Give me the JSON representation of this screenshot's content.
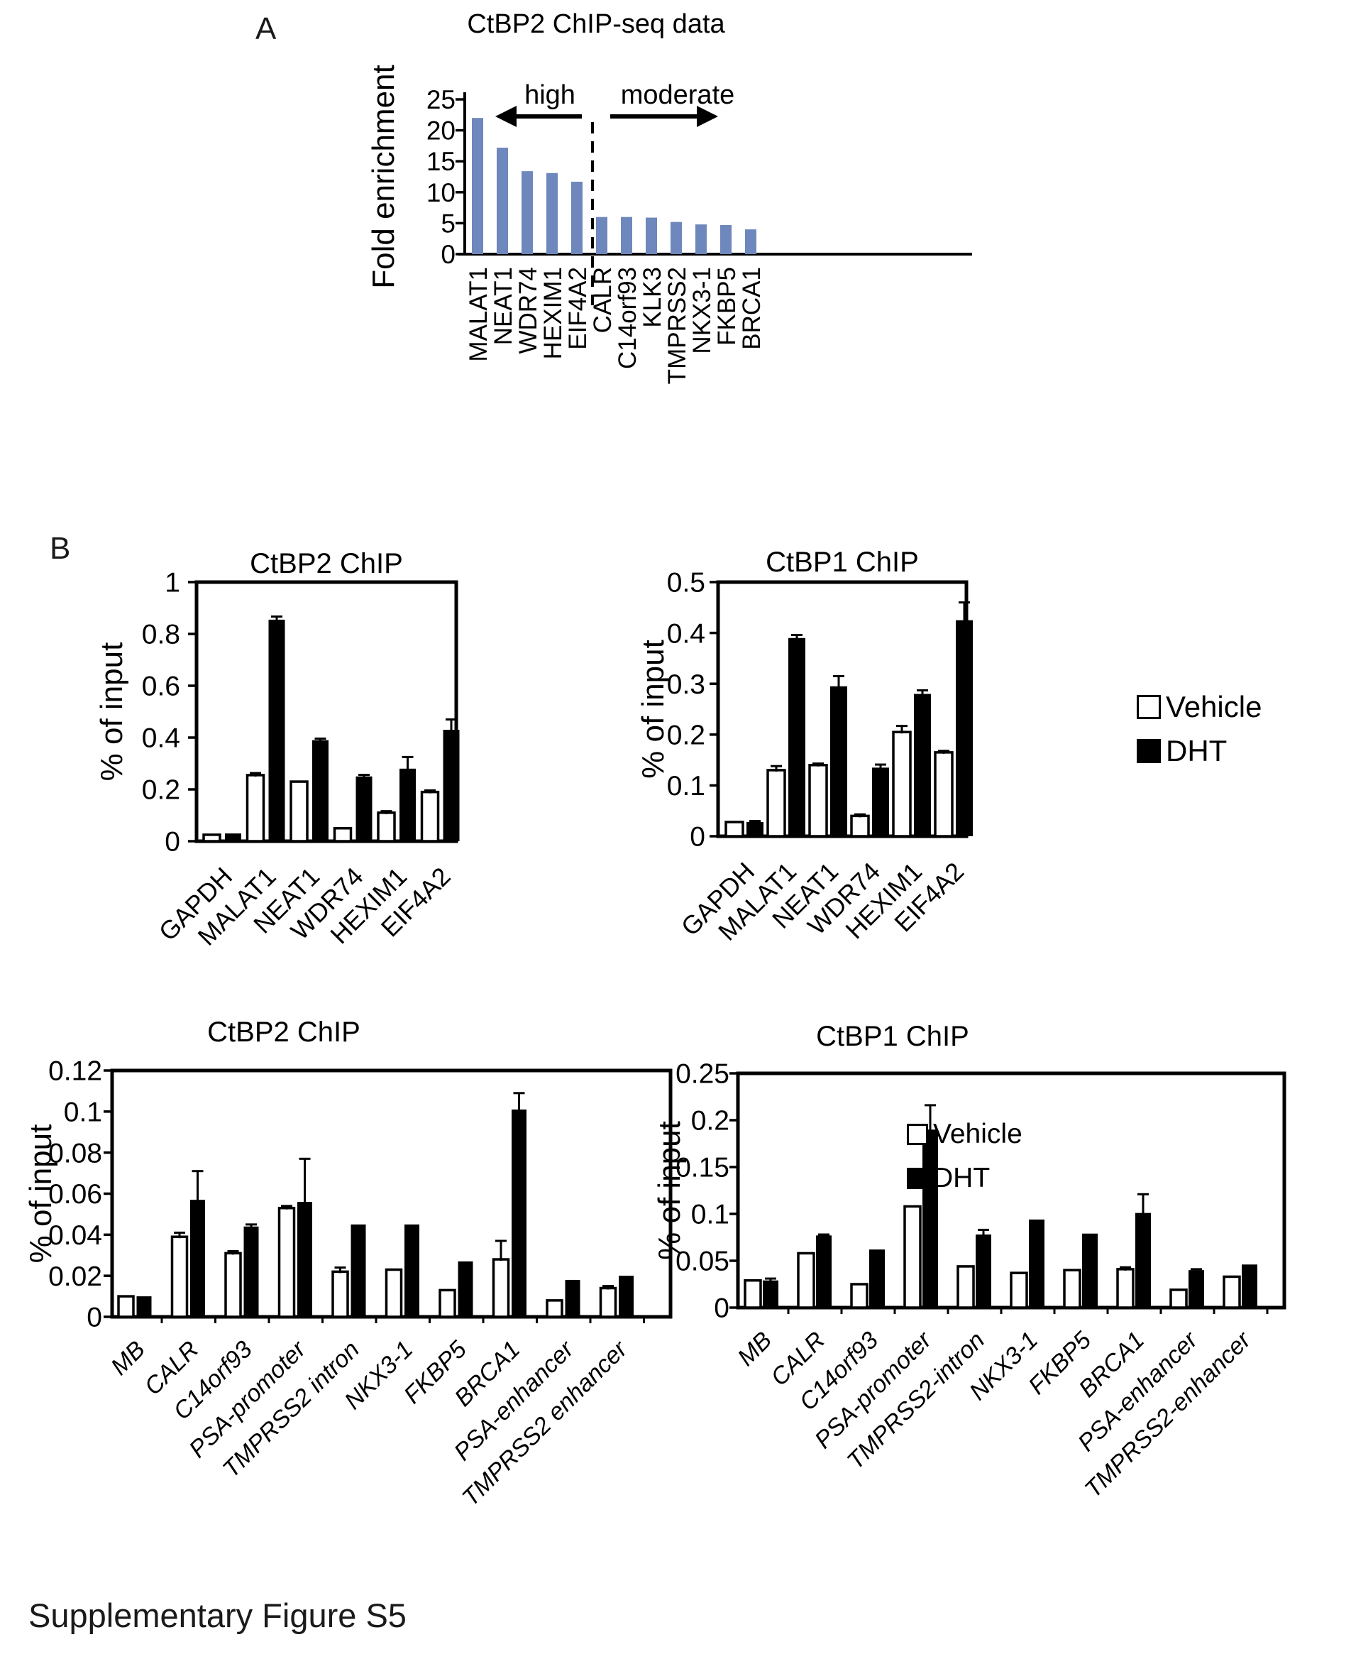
{
  "figure": {
    "panel_a_label": "A",
    "panel_b_label": "B",
    "caption": "Supplementary Figure S5"
  },
  "legend": {
    "vehicle_label": "Vehicle",
    "dht_label": "DHT"
  },
  "colors": {
    "seq_bar_blue": "#6e87bc",
    "vehicle_fill": "#ffffff",
    "dht_fill": "#000000",
    "axis_black": "#000000"
  },
  "chart_data": [
    {
      "id": "ctbp2-chipseq",
      "type": "bar",
      "title": "CtBP2 ChIP-seq data",
      "ylabel": "Fold enrichment",
      "xlabel": "",
      "ylim": [
        0,
        25
      ],
      "yticks": [
        0,
        5,
        10,
        15,
        20,
        25
      ],
      "grid": false,
      "legend_position": "none",
      "categories": [
        "MALAT1",
        "NEAT1",
        "WDR74",
        "HEXIM1",
        "EIF4A2",
        "CALR",
        "C14orf93",
        "KLK3",
        "TMPRSS2",
        "NKX3-1",
        "FKBP5",
        "BRCA1"
      ],
      "values": [
        22,
        17.2,
        13.4,
        13.1,
        11.7,
        6,
        6,
        5.9,
        5.2,
        4.8,
        4.7,
        4
      ],
      "annotations": [
        {
          "text": "high",
          "arrow": "left"
        },
        {
          "text": "moderate",
          "arrow": "right"
        }
      ],
      "separator": {
        "after_category": "EIF4A2",
        "style": "dashed"
      }
    },
    {
      "id": "ctbp2-chip-top",
      "type": "bar",
      "title": "CtBP2 ChIP",
      "ylabel": "% of input",
      "xlabel": "",
      "ylim": [
        0,
        1
      ],
      "yticks": [
        0,
        0.2,
        0.4,
        0.6,
        0.8,
        1
      ],
      "grid": false,
      "legend_position": "none",
      "categories": [
        "GAPDH",
        "MALAT1",
        "NEAT1",
        "WDR74",
        "HEXIM1",
        "EIF4A2"
      ],
      "series": [
        {
          "name": "Vehicle",
          "values": [
            0.025,
            0.255,
            0.23,
            0.05,
            0.11,
            0.19
          ],
          "errors": [
            0,
            0.008,
            0,
            0,
            0.006,
            0.006
          ]
        },
        {
          "name": "DHT",
          "values": [
            0.03,
            0.855,
            0.39,
            0.25,
            0.28,
            0.43
          ],
          "errors": [
            0,
            0.012,
            0.006,
            0.006,
            0.045,
            0.04
          ]
        }
      ]
    },
    {
      "id": "ctbp1-chip-top",
      "type": "bar",
      "title": "CtBP1 ChIP",
      "ylabel": "% of input",
      "xlabel": "",
      "ylim": [
        0,
        0.5
      ],
      "yticks": [
        0,
        0.1,
        0.2,
        0.3,
        0.4,
        0.5
      ],
      "grid": false,
      "legend_position": "right-outside",
      "categories": [
        "GAPDH",
        "MALAT1",
        "NEAT1",
        "WDR74",
        "HEXIM1",
        "EIF4A2"
      ],
      "series": [
        {
          "name": "Vehicle",
          "values": [
            0.028,
            0.13,
            0.14,
            0.04,
            0.205,
            0.165
          ],
          "errors": [
            0,
            0.008,
            0.003,
            0.003,
            0.012,
            0.003
          ]
        },
        {
          "name": "DHT",
          "values": [
            0.028,
            0.39,
            0.295,
            0.135,
            0.28,
            0.425
          ],
          "errors": [
            0.002,
            0.006,
            0.02,
            0.006,
            0.007,
            0.035
          ]
        }
      ]
    },
    {
      "id": "ctbp2-chip-bottom",
      "type": "bar",
      "title": "CtBP2 ChIP",
      "ylabel": "% of input",
      "xlabel": "",
      "ylim": [
        0,
        0.12
      ],
      "yticks": [
        0,
        0.02,
        0.04,
        0.06,
        0.08,
        0.1,
        0.12
      ],
      "grid": false,
      "legend_position": "none",
      "categories": [
        "MB",
        "CALR",
        "C14orf93",
        "PSA-promoter",
        "TMPRSS2 intron",
        "NKX3-1",
        "FKBP5",
        "BRCA1",
        "PSA-enhancer",
        "TMPRSS2 enhancer"
      ],
      "series": [
        {
          "name": "Vehicle",
          "values": [
            0.01,
            0.039,
            0.031,
            0.053,
            0.022,
            0.023,
            0.013,
            0.028,
            0.008,
            0.014
          ],
          "errors": [
            0,
            0.002,
            0.001,
            0.001,
            0.002,
            0,
            0,
            0.009,
            0,
            0.001
          ]
        },
        {
          "name": "DHT",
          "values": [
            0.01,
            0.057,
            0.044,
            0.056,
            0.045,
            0.045,
            0.027,
            0.101,
            0.018,
            0.02
          ],
          "errors": [
            0,
            0.014,
            0.001,
            0.021,
            0,
            0,
            0,
            0.008,
            0,
            0
          ]
        }
      ]
    },
    {
      "id": "ctbp1-chip-bottom",
      "type": "bar",
      "title": "CtBP1 ChIP",
      "ylabel": "% of input",
      "xlabel": "",
      "ylim": [
        0,
        0.25
      ],
      "yticks": [
        0,
        0.05,
        0.1,
        0.15,
        0.2,
        0.25
      ],
      "grid": false,
      "legend_position": "inside-top-right",
      "categories": [
        "MB",
        "CALR",
        "C14orf93",
        "PSA-promoter",
        "TMPRSS2-intron",
        "NKX3-1",
        "FKBP5",
        "BRCA1",
        "PSA-enhancer",
        "TMPRSS2-enhancer"
      ],
      "series": [
        {
          "name": "Vehicle",
          "values": [
            0.029,
            0.058,
            0.025,
            0.108,
            0.044,
            0.037,
            0.04,
            0.041,
            0.019,
            0.033
          ],
          "errors": [
            0,
            0,
            0,
            0,
            0,
            0,
            0,
            0.002,
            0,
            0
          ]
        },
        {
          "name": "DHT",
          "values": [
            0.029,
            0.077,
            0.062,
            0.19,
            0.078,
            0.094,
            0.079,
            0.101,
            0.04,
            0.046
          ],
          "errors": [
            0.002,
            0.001,
            0,
            0.026,
            0.005,
            0,
            0,
            0.02,
            0.001,
            0
          ]
        }
      ]
    }
  ]
}
